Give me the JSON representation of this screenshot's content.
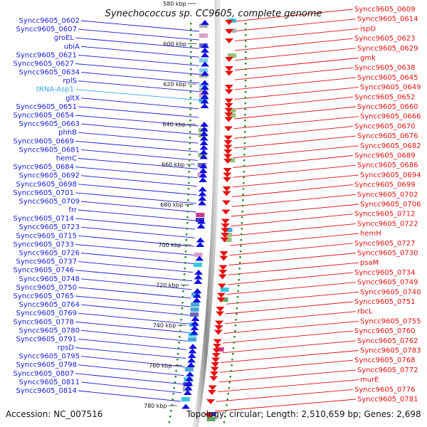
{
  "title": "Synechococcus sp. CC9605, complete genome",
  "footer": {
    "accession": "Accession: NC_007516",
    "topology": "Topology: circular; Length: 2,510,659 bp; Genes: 2,698"
  },
  "colors": {
    "left_labels": "#1a1ad6",
    "right_labels": "#e01010",
    "trna": "#33a7e8",
    "axis": "#999999",
    "dots": "#2e8b2e"
  },
  "kbp_ticks": [
    "580 kbp",
    "600 kbp",
    "620 kbp",
    "640 kbp",
    "660 kbp",
    "680 kbp",
    "700 kbp",
    "720 kbp",
    "740 kbp",
    "760 kbp",
    "780 kbp"
  ],
  "left_labels": [
    "Syncc9605_0602",
    "Syncc9605_0607",
    "groEL",
    "ubiA",
    "Syncc9605_0621",
    "Syncc9605_0627",
    "Syncc9605_0634",
    "rplS",
    "tRNA-Asp1",
    "gltX",
    "Syncc9605_0651",
    "Syncc9605_0654",
    "Syncc9605_0663",
    "phhB",
    "Syncc9605_0669",
    "Syncc9605_0681",
    "hemC",
    "Syncc9605_0684",
    "Syncc9605_0692",
    "Syncc9605_0698",
    "Syncc9605_0701",
    "Syncc9605_0709",
    "frr",
    "Syncc9605_0714",
    "Syncc9605_0723",
    "Syncc9605_0715",
    "Syncc9605_0733",
    "Syncc9605_0726",
    "Syncc9605_0737",
    "Syncc9605_0746",
    "Syncc9605_0748",
    "Syncc9605_0750",
    "Syncc9605_0765",
    "Syncc9605_0764",
    "Syncc9605_0769",
    "Syncc9605_0778",
    "Syncc9605_0780",
    "Syncc9605_0791",
    "rpsD",
    "Syncc9605_0795",
    "Syncc9605_0798",
    "Syncc9605_0807",
    "Syncc9605_0811",
    "Syncc9605_0814"
  ],
  "right_labels": [
    "Syncc9605_0609",
    "Syncc9605_0614",
    "ispD",
    "Syncc9605_0623",
    "Syncc9605_0629",
    "gmk",
    "Syncc9605_0638",
    "Syncc9605_0645",
    "Syncc9605_0649",
    "Syncc9605_0652",
    "Syncc9605_0660",
    "Syncc9605_0666",
    "Syncc9605_0670",
    "Syncc9605_0676",
    "Syncc9605_0682",
    "Syncc9605_0689",
    "Syncc9605_0686",
    "Syncc9605_0694",
    "Syncc9605_0699",
    "Syncc9605_0702",
    "Syncc9605_0706",
    "Syncc9605_0712",
    "Syncc9605_0722",
    "hemH",
    "Syncc9605_0727",
    "Syncc9605_0730",
    "psaM",
    "Syncc9605_0734",
    "Syncc9605_0749",
    "Syncc9605_0740",
    "Syncc9605_0751",
    "rbcL",
    "Syncc9605_0755",
    "Syncc9605_0760",
    "Syncc9605_0762",
    "Syncc9605_0783",
    "Syncc9605_0768",
    "Syncc9605_0772",
    "murE",
    "Syncc9605_0776",
    "Syncc9605_0781"
  ]
}
